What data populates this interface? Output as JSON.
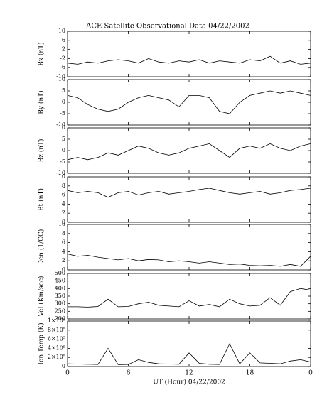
{
  "chart_data": [
    {
      "type": "line",
      "title": "ACE Satellite Observational Data  04/22/2002",
      "ylabel": "Bx (nT)",
      "color": "#000000",
      "x": [
        0,
        1,
        2,
        3,
        4,
        5,
        6,
        7,
        8,
        9,
        10,
        11,
        12,
        13,
        14,
        15,
        16,
        17,
        18,
        19,
        20,
        21,
        22,
        23,
        24
      ],
      "values": [
        -4,
        -4.5,
        -3.5,
        -4,
        -3,
        -2.5,
        -3,
        -4,
        -2,
        -3.5,
        -4,
        -3,
        -3.5,
        -2.5,
        -4,
        -3,
        -3.5,
        -4,
        -2.5,
        -3,
        -1,
        -4,
        -3,
        -4.5,
        -4
      ],
      "ylim": [
        -10,
        10
      ],
      "yticks": [
        -10,
        -6,
        -2,
        2,
        6,
        10
      ]
    },
    {
      "type": "line",
      "ylabel": "By (nT)",
      "color": "#000000",
      "x": [
        0,
        1,
        2,
        3,
        4,
        5,
        6,
        7,
        8,
        9,
        10,
        11,
        12,
        13,
        14,
        15,
        16,
        17,
        18,
        19,
        20,
        21,
        22,
        23,
        24
      ],
      "values": [
        3,
        2,
        -1,
        -3,
        -4,
        -3,
        0,
        2,
        3,
        2,
        1,
        -2,
        3,
        3,
        2,
        -4,
        -5,
        0,
        3,
        4,
        5,
        4,
        5,
        4,
        3
      ],
      "ylim": [
        -10,
        10
      ],
      "yticks": [
        -10,
        -5,
        0,
        5,
        10
      ]
    },
    {
      "type": "line",
      "ylabel": "Bz (nT)",
      "color": "#000000",
      "x": [
        0,
        1,
        2,
        3,
        4,
        5,
        6,
        7,
        8,
        9,
        10,
        11,
        12,
        13,
        14,
        15,
        16,
        17,
        18,
        19,
        20,
        21,
        22,
        23,
        24
      ],
      "values": [
        -4,
        -3,
        -4,
        -3,
        -1,
        -2,
        0,
        2,
        1,
        -1,
        -2,
        -1,
        1,
        2,
        3,
        0,
        -3,
        1,
        2,
        1,
        3,
        1,
        0,
        2,
        3
      ],
      "ylim": [
        -10,
        10
      ],
      "yticks": [
        -10,
        -5,
        0,
        5,
        10
      ]
    },
    {
      "type": "line",
      "ylabel": "Bt (nT)",
      "color": "#000000",
      "x": [
        0,
        1,
        2,
        3,
        4,
        5,
        6,
        7,
        8,
        9,
        10,
        11,
        12,
        13,
        14,
        15,
        16,
        17,
        18,
        19,
        20,
        21,
        22,
        23,
        24
      ],
      "values": [
        7,
        6.5,
        6.8,
        6.5,
        5.5,
        6.5,
        6.8,
        6,
        6.5,
        6.8,
        6.2,
        6.5,
        6.8,
        7.2,
        7.5,
        7,
        6.5,
        6.2,
        6.5,
        6.8,
        6.2,
        6.5,
        7,
        7.2,
        7.5
      ],
      "ylim": [
        0,
        10
      ],
      "yticks": [
        0,
        2,
        4,
        6,
        8,
        10
      ]
    },
    {
      "type": "line",
      "ylabel": "Den (1/CC)",
      "color": "#000000",
      "x": [
        0,
        1,
        2,
        3,
        4,
        5,
        6,
        7,
        8,
        9,
        10,
        11,
        12,
        13,
        14,
        15,
        16,
        17,
        18,
        19,
        20,
        21,
        22,
        23,
        24
      ],
      "values": [
        3.5,
        3,
        3.2,
        2.8,
        2.5,
        2.2,
        2.5,
        2,
        2.3,
        2.2,
        1.8,
        2,
        1.8,
        1.5,
        1.8,
        1.5,
        1.2,
        1.3,
        1,
        0.9,
        1,
        0.8,
        1.2,
        0.8,
        3
      ],
      "ylim": [
        0,
        10
      ],
      "yticks": [
        0,
        2,
        4,
        6,
        8,
        10
      ]
    },
    {
      "type": "line",
      "ylabel": "Vel (Km/sec)",
      "color": "#000000",
      "x": [
        0,
        1,
        2,
        3,
        4,
        5,
        6,
        7,
        8,
        9,
        10,
        11,
        12,
        13,
        14,
        15,
        16,
        17,
        18,
        19,
        20,
        21,
        22,
        23,
        24
      ],
      "values": [
        280,
        280,
        278,
        282,
        330,
        280,
        282,
        300,
        310,
        290,
        285,
        280,
        320,
        285,
        295,
        280,
        330,
        300,
        285,
        290,
        340,
        290,
        380,
        400,
        390
      ],
      "ylim": [
        200,
        500
      ],
      "yticks": [
        200,
        250,
        300,
        350,
        400,
        450,
        500
      ]
    },
    {
      "type": "line",
      "ylabel": "Ion Temp (K)",
      "color": "#000000",
      "x": [
        0,
        1,
        2,
        3,
        4,
        5,
        6,
        7,
        8,
        9,
        10,
        11,
        12,
        13,
        14,
        15,
        16,
        17,
        18,
        19,
        20,
        21,
        22,
        23,
        24
      ],
      "values": [
        60000,
        55000,
        50000,
        45000,
        400000,
        40000,
        45000,
        150000,
        90000,
        60000,
        55000,
        50000,
        300000,
        70000,
        50000,
        45000,
        500000,
        60000,
        300000,
        80000,
        70000,
        60000,
        120000,
        150000,
        100000
      ],
      "ylim": [
        0,
        1000000
      ],
      "yticks": [
        0,
        {
          "value": 200000,
          "label": "2×10⁵"
        },
        {
          "value": 400000,
          "label": "4×10⁵"
        },
        {
          "value": 600000,
          "label": "6×10⁵"
        },
        {
          "value": 800000,
          "label": "8×10⁵"
        },
        {
          "value": 1000000,
          "label": "1×10⁶"
        }
      ],
      "xlabel": "UT (Hour)  04/22/2002",
      "xlim": [
        0,
        24
      ],
      "xticks": [
        0,
        6,
        12,
        18,
        {
          "value": 24,
          "label": "0"
        }
      ]
    }
  ]
}
